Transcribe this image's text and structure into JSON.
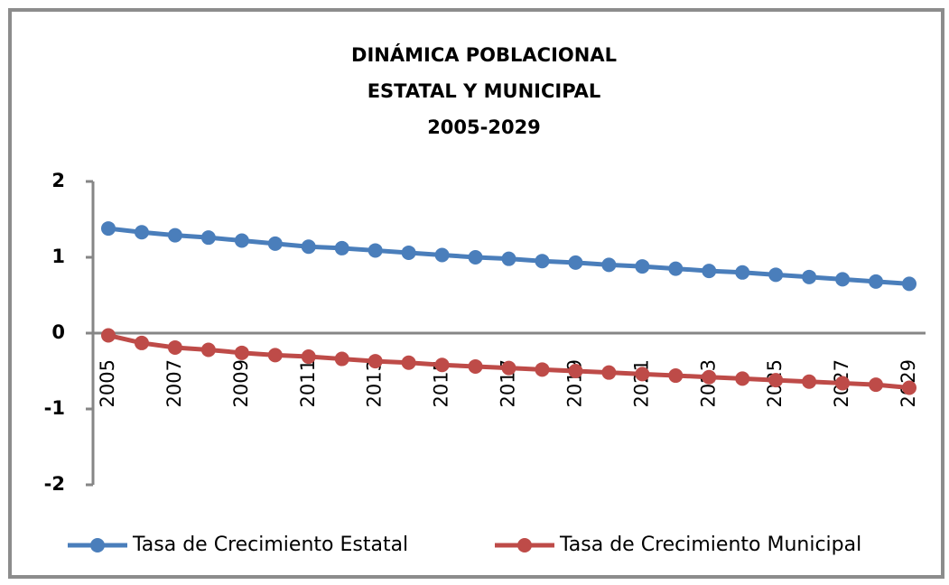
{
  "chart_data": {
    "type": "line",
    "title": [
      "DINÁMICA POBLACIONAL",
      "ESTATAL Y MUNICIPAL",
      "2005-2029"
    ],
    "categories": [
      "2005",
      null,
      "2007",
      null,
      "2009",
      null,
      "2011",
      null,
      "2013",
      null,
      "2015",
      null,
      "2017",
      null,
      "2019",
      null,
      "2021",
      null,
      "2023",
      null,
      "2025",
      null,
      "2027",
      null,
      "2029"
    ],
    "series": [
      {
        "name": "Tasa de Crecimiento Estatal",
        "color": "#4a7ebb",
        "values": [
          1.38,
          1.33,
          1.29,
          1.26,
          1.22,
          1.18,
          1.14,
          1.12,
          1.09,
          1.06,
          1.03,
          1.0,
          0.98,
          0.95,
          0.93,
          0.9,
          0.88,
          0.85,
          0.82,
          0.8,
          0.77,
          0.74,
          0.71,
          0.68,
          0.65
        ]
      },
      {
        "name": "Tasa de Crecimiento Municipal",
        "color": "#be4b48",
        "values": [
          -0.03,
          -0.13,
          -0.19,
          -0.22,
          -0.26,
          -0.29,
          -0.31,
          -0.34,
          -0.37,
          -0.39,
          -0.42,
          -0.44,
          -0.46,
          -0.48,
          -0.5,
          -0.52,
          -0.54,
          -0.56,
          -0.58,
          -0.6,
          -0.62,
          -0.64,
          -0.66,
          -0.68,
          -0.72
        ]
      }
    ],
    "ylim": [
      -2,
      2
    ],
    "yticks": [
      2,
      1,
      0,
      -1,
      -2
    ],
    "legend": "bottom"
  }
}
